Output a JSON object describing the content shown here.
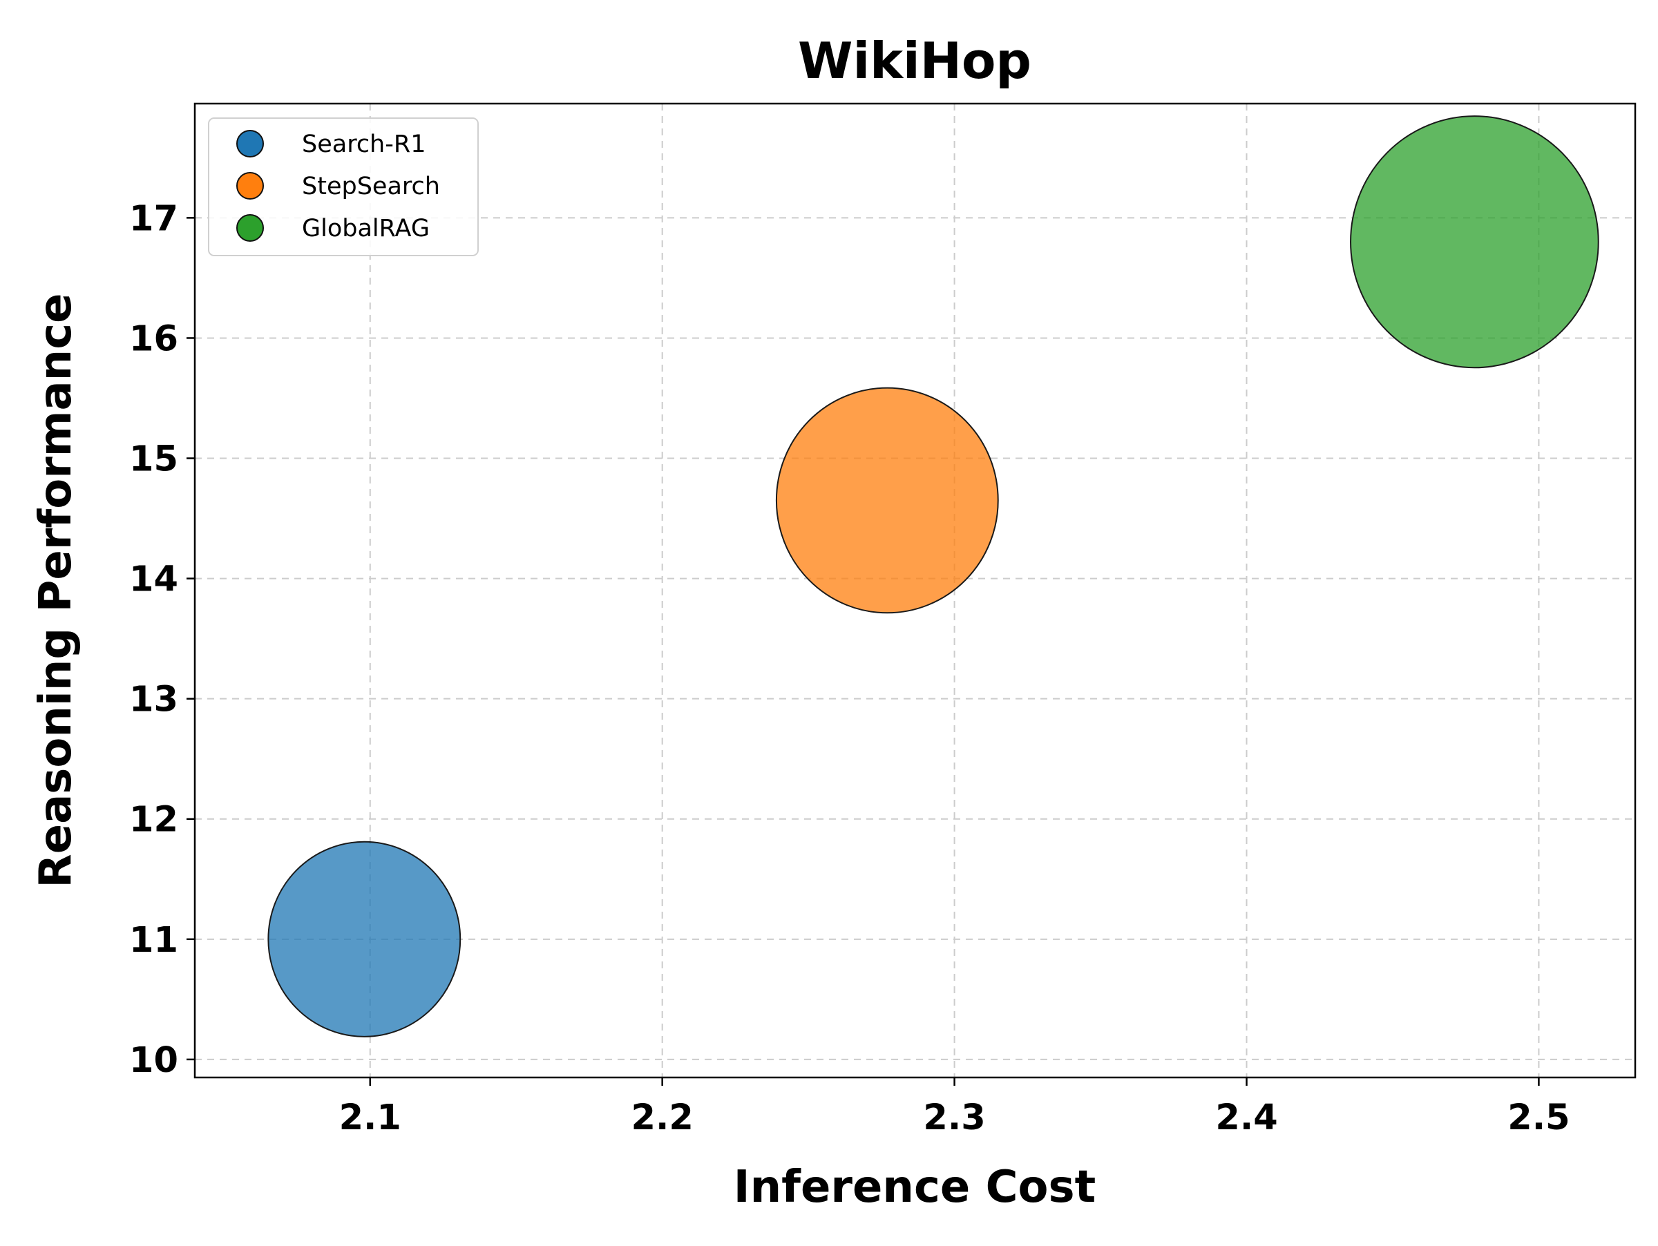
{
  "chart_data": {
    "type": "scatter",
    "title": "WikiHop",
    "xlabel": "Inference Cost",
    "ylabel": "Reasoning Performance",
    "xlim": [
      2.04,
      2.533
    ],
    "ylim": [
      9.85,
      17.95
    ],
    "x_ticks": [
      2.1,
      2.2,
      2.3,
      2.4,
      2.5
    ],
    "x_tick_labels": [
      "2.1",
      "2.2",
      "2.3",
      "2.4",
      "2.5"
    ],
    "y_ticks": [
      10,
      11,
      12,
      13,
      14,
      15,
      16,
      17
    ],
    "y_tick_labels": [
      "10",
      "11",
      "12",
      "13",
      "14",
      "15",
      "16",
      "17"
    ],
    "grid": true,
    "legend_position": "top-left",
    "series": [
      {
        "name": "Search-R1",
        "x": 2.098,
        "y": 11.0,
        "size": 0.6,
        "color": "#1f77b4"
      },
      {
        "name": "StepSearch",
        "x": 2.277,
        "y": 14.65,
        "size": 0.8,
        "color": "#ff7f0e"
      },
      {
        "name": "GlobalRAG",
        "x": 2.478,
        "y": 16.8,
        "size": 1.0,
        "color": "#2ca02c"
      }
    ]
  }
}
